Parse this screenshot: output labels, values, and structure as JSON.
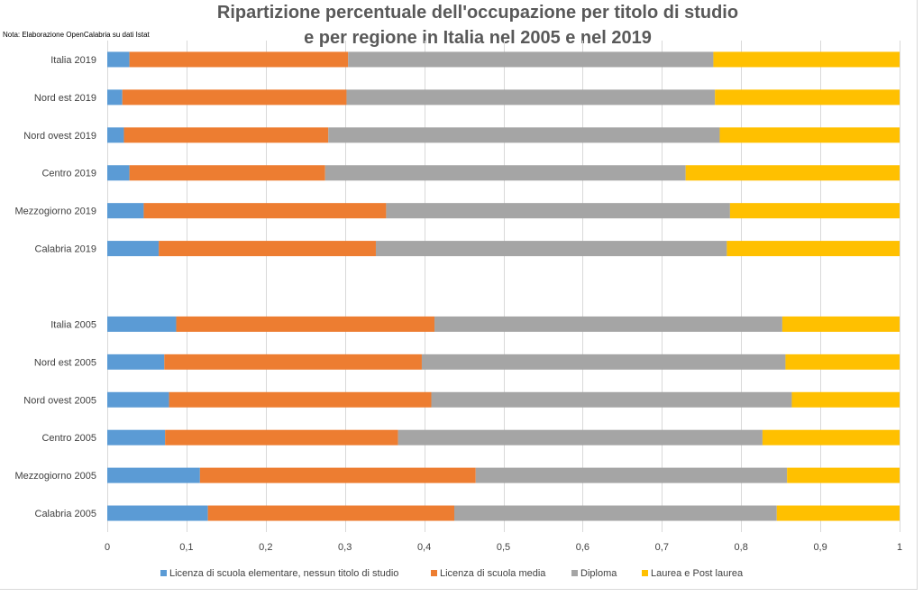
{
  "note": "Nota: Elaborazione OpenCalabria su dati Istat",
  "colors": {
    "elementare": "#5b9bd5",
    "media": "#ed7d31",
    "diploma": "#a5a5a5",
    "laurea": "#ffc000",
    "grid": "#d9d9d9",
    "text": "#404040",
    "title": "#595959"
  },
  "chart_data": {
    "type": "bar",
    "orientation": "horizontal",
    "stacked": true,
    "title": [
      "Ripartizione percentuale dell'occupazione per titolo di studio",
      "e per regione in Italia nel 2005 e nel 2019"
    ],
    "xlim": [
      0,
      1
    ],
    "xticks": [
      "0",
      "0,1",
      "0,2",
      "0,3",
      "0,4",
      "0,5",
      "0,6",
      "0,7",
      "0,8",
      "0,9",
      "1"
    ],
    "grid": "vertical",
    "legend_position": "bottom",
    "categories": [
      "Italia 2019",
      "Nord est 2019",
      "Nord ovest 2019",
      "Centro 2019",
      "Mezzogiorno 2019",
      "Calabria 2019",
      "",
      "Italia 2005",
      "Nord est 2005",
      "Nord ovest 2005",
      "Centro 2005",
      "Mezzogiorno 2005",
      "Calabria 2005"
    ],
    "series": [
      {
        "name": "Licenza di scuola elementare, nessun titolo di studio",
        "values": [
          0.028,
          0.019,
          0.021,
          0.028,
          0.046,
          0.065,
          null,
          0.087,
          0.072,
          0.078,
          0.073,
          0.117,
          0.127
        ]
      },
      {
        "name": "Licenza di scuola media",
        "values": [
          0.276,
          0.283,
          0.258,
          0.247,
          0.306,
          0.274,
          null,
          0.326,
          0.325,
          0.331,
          0.294,
          0.348,
          0.311
        ]
      },
      {
        "name": "Diploma",
        "values": [
          0.461,
          0.465,
          0.494,
          0.455,
          0.434,
          0.443,
          null,
          0.439,
          0.459,
          0.455,
          0.46,
          0.393,
          0.407
        ]
      },
      {
        "name": "Laurea e Post laurea",
        "values": [
          0.235,
          0.233,
          0.227,
          0.27,
          0.214,
          0.218,
          null,
          0.148,
          0.144,
          0.136,
          0.173,
          0.142,
          0.155
        ]
      }
    ]
  }
}
